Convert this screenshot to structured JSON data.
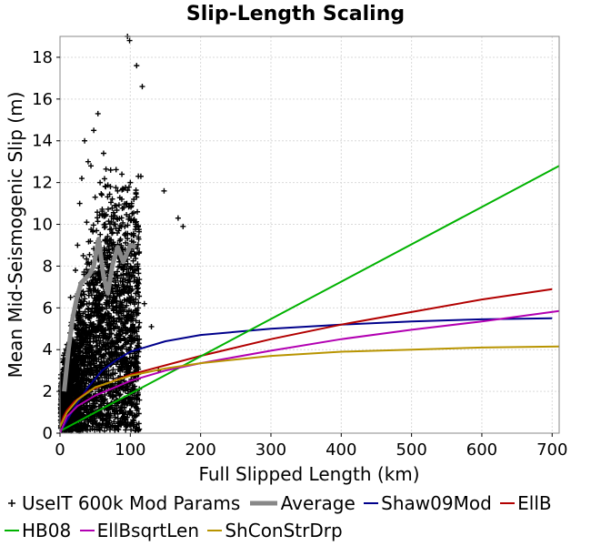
{
  "chart_data": {
    "type": "scatter",
    "title": "Slip-Length Scaling",
    "xlabel": "Full Slipped Length (km)",
    "ylabel": "Mean Mid-Seismogenic Slip (m)",
    "xlim": [
      0,
      710
    ],
    "ylim": [
      0,
      19
    ],
    "x_ticks": [
      0,
      100,
      200,
      300,
      400,
      500,
      600,
      700
    ],
    "y_ticks": [
      0,
      2,
      4,
      6,
      8,
      10,
      12,
      14,
      16,
      18
    ],
    "grid": true,
    "legend_position": "bottom",
    "series": [
      {
        "name": "UseIT 600k Mod Params",
        "kind": "points",
        "color": "#000000",
        "marker": "plus",
        "x": [
          2,
          5,
          6,
          8,
          10,
          12,
          14,
          15,
          18,
          20,
          22,
          24,
          25,
          27,
          28,
          30,
          31,
          33,
          35,
          36,
          38,
          40,
          42,
          44,
          45,
          47,
          48,
          50,
          52,
          54,
          55,
          57,
          58,
          60,
          62,
          64,
          65,
          68,
          70,
          72,
          75,
          78,
          80,
          82,
          85,
          88,
          90,
          92,
          95,
          97,
          100,
          102,
          105,
          108,
          110,
          112,
          115,
          120,
          130,
          140,
          148,
          168,
          175,
          96,
          99,
          109,
          117,
          55,
          50,
          45,
          30,
          25,
          60,
          70
        ],
        "y": [
          0.6,
          1.5,
          3.0,
          2.4,
          0.9,
          4.2,
          3.1,
          6.5,
          5.0,
          2.2,
          7.8,
          4.6,
          9.0,
          3.5,
          11.0,
          6.1,
          12.2,
          8.5,
          14.0,
          5.2,
          10.1,
          13.0,
          7.2,
          12.8,
          4.0,
          9.7,
          14.5,
          11.3,
          6.6,
          15.3,
          8.8,
          12.0,
          2.8,
          10.5,
          13.4,
          7.7,
          11.8,
          5.6,
          9.2,
          12.6,
          6.9,
          10.9,
          3.3,
          11.6,
          8.0,
          12.4,
          5.9,
          9.5,
          11.0,
          7.3,
          12.0,
          8.7,
          11.2,
          9.9,
          10.6,
          3.9,
          12.3,
          6.2,
          5.1,
          3.0,
          11.6,
          10.3,
          9.9,
          19.0,
          18.8,
          17.6,
          16.6,
          0.4,
          0.6,
          0.8,
          0.3,
          0.7,
          0.9,
          0.5
        ]
      },
      {
        "name": "Average",
        "kind": "line",
        "color": "#888888",
        "width": 5,
        "x": [
          6,
          12,
          18,
          24,
          30,
          36,
          42,
          48,
          55,
          62,
          68,
          75,
          82,
          90,
          100,
          108
        ],
        "y": [
          2.0,
          4.0,
          5.5,
          6.5,
          7.2,
          7.4,
          7.6,
          8.0,
          9.3,
          7.5,
          6.7,
          8.1,
          8.9,
          8.2,
          9.0,
          8.9
        ]
      },
      {
        "name": "Shaw09Mod",
        "kind": "line",
        "color": "#00008B",
        "x": [
          0,
          10,
          20,
          30,
          40,
          60,
          80,
          100,
          150,
          200,
          300,
          400,
          500,
          600,
          700
        ],
        "y": [
          0,
          0.6,
          1.2,
          1.7,
          2.2,
          3.0,
          3.5,
          3.9,
          4.4,
          4.7,
          5.0,
          5.2,
          5.35,
          5.45,
          5.5
        ]
      },
      {
        "name": "EllB",
        "kind": "line",
        "color": "#B20000",
        "x": [
          0,
          5,
          10,
          20,
          40,
          60,
          100,
          200,
          300,
          400,
          500,
          600,
          700
        ],
        "y": [
          0.3,
          0.8,
          1.1,
          1.5,
          2.0,
          2.3,
          2.8,
          3.7,
          4.5,
          5.2,
          5.8,
          6.4,
          6.9
        ]
      },
      {
        "name": "HB08",
        "kind": "line",
        "color": "#00B200",
        "x": [
          0,
          710
        ],
        "y": [
          0.1,
          12.8
        ]
      },
      {
        "name": "EllBsqrtLen",
        "kind": "line",
        "color": "#B200B2",
        "x": [
          0,
          10,
          25,
          50,
          100,
          150,
          200,
          300,
          400,
          500,
          600,
          710
        ],
        "y": [
          0.0,
          0.8,
          1.3,
          1.8,
          2.5,
          3.0,
          3.35,
          3.95,
          4.5,
          4.95,
          5.35,
          5.85
        ]
      },
      {
        "name": "ShConStrDrp",
        "kind": "line",
        "color": "#B89400",
        "x": [
          0,
          10,
          25,
          50,
          100,
          150,
          200,
          300,
          400,
          500,
          600,
          710
        ],
        "y": [
          0.3,
          1.0,
          1.6,
          2.2,
          2.75,
          3.1,
          3.35,
          3.7,
          3.9,
          4.0,
          4.1,
          4.15
        ]
      }
    ]
  }
}
